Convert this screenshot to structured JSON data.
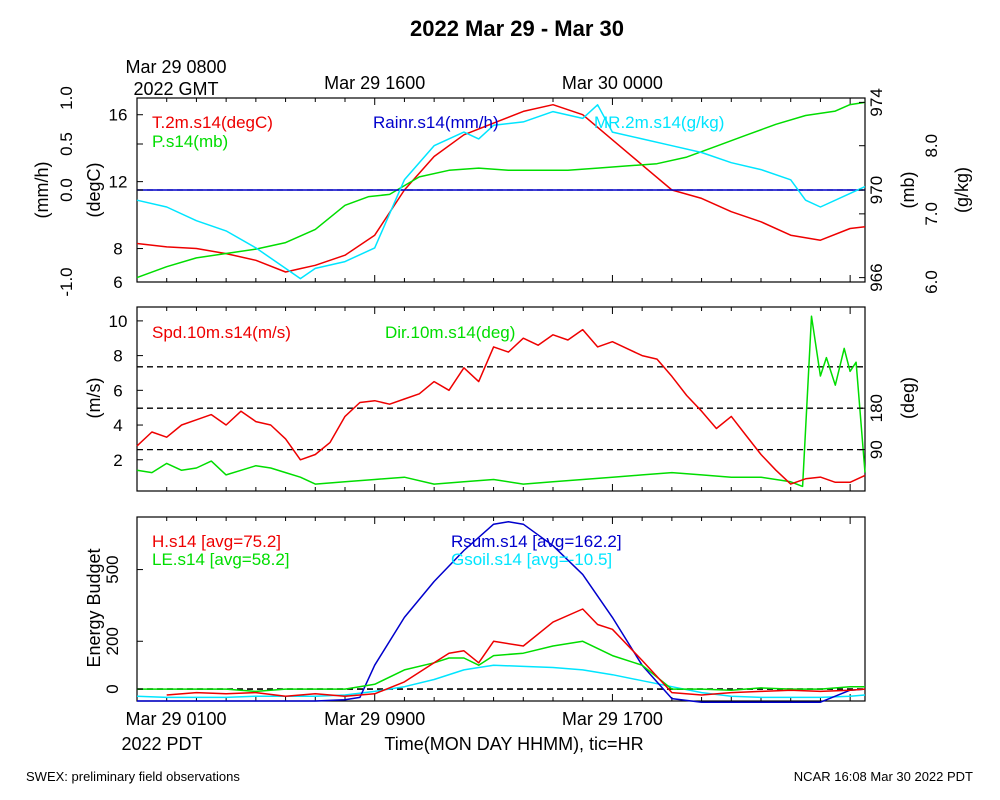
{
  "title": "2022 Mar 29 - Mar 30",
  "footer": {
    "left": "SWEX: preliminary field observations",
    "right": "NCAR 16:08 Mar 30 2022 PDT"
  },
  "top_axis": {
    "timezone_label": "2022 GMT",
    "ticks": [
      {
        "label": "Mar 29 0800",
        "hour": 0
      },
      {
        "label": "Mar 29 1600",
        "hour": 8
      },
      {
        "label": "Mar 30 0000",
        "hour": 16
      }
    ]
  },
  "bottom_axis": {
    "timezone_label": "2022 PDT",
    "xlabel": "Time(MON DAY HHMM), tic=HR",
    "ticks": [
      {
        "label": "Mar 29 0100",
        "hour": 0
      },
      {
        "label": "Mar 29 0900",
        "hour": 8
      },
      {
        "label": "Mar 29 1700",
        "hour": 16
      }
    ],
    "x_range_hours": [
      0,
      24.5
    ]
  },
  "chart_data": [
    {
      "type": "line",
      "panel": "temperature-humidity-pressure-rain",
      "grid": false,
      "axes": {
        "rain": {
          "label": "(mm/h)",
          "range": [
            -1.0,
            1.0
          ],
          "ticks": [
            "-1.0",
            "0.0",
            "0.5",
            "1.0"
          ],
          "tick_values": [
            -1.0,
            0.0,
            0.5,
            1.0
          ]
        },
        "temp": {
          "label": "(degC)",
          "range": [
            6,
            17
          ],
          "ticks": [
            "6",
            "8",
            "12",
            "16"
          ],
          "tick_values": [
            6,
            8,
            12,
            16
          ]
        },
        "pres": {
          "label": "(mb)",
          "range": [
            965.8,
            974.2
          ],
          "ticks": [
            "966",
            "970",
            "974"
          ],
          "tick_values": [
            966,
            970,
            974
          ]
        },
        "mr": {
          "label": "(g/kg)",
          "range": [
            6.0,
            8.7
          ],
          "ticks": [
            "6.0",
            "7.0",
            "8.0"
          ],
          "tick_values": [
            6.0,
            7.0,
            8.0
          ]
        }
      },
      "series": [
        {
          "name": "T.2m.s14(degC)",
          "color": "#ee0000",
          "axis": "temp",
          "x": [
            0,
            1,
            2,
            3,
            4,
            5,
            5.5,
            6,
            7,
            8,
            9,
            10,
            11,
            12,
            13,
            14,
            15,
            16,
            17,
            18,
            19,
            20,
            21,
            22,
            23,
            24,
            24.5
          ],
          "y": [
            8.3,
            8.1,
            8.0,
            7.7,
            7.3,
            6.6,
            6.8,
            7.0,
            7.6,
            8.8,
            11.5,
            13.5,
            14.8,
            15.5,
            16.2,
            16.6,
            16.0,
            14.5,
            13.0,
            11.5,
            11.0,
            10.2,
            9.6,
            8.8,
            8.5,
            9.2,
            9.3
          ]
        },
        {
          "name": "P.s14(mb)",
          "color": "#00dd00",
          "axis": "pres",
          "x": [
            0,
            1,
            2,
            3,
            4,
            5,
            6,
            7,
            7.8,
            8.5,
            9.5,
            10.5,
            11.5,
            12.5,
            13.5,
            14.5,
            15.5,
            16.5,
            17.5,
            18.5,
            19.5,
            20.5,
            21.5,
            22.5,
            23.5,
            24,
            24.5
          ],
          "y": [
            966.0,
            966.5,
            966.9,
            967.1,
            967.3,
            967.6,
            968.2,
            969.3,
            969.7,
            969.8,
            970.6,
            970.9,
            971.0,
            970.9,
            970.9,
            970.9,
            971.0,
            971.1,
            971.2,
            971.5,
            972.0,
            972.5,
            973.0,
            973.4,
            973.6,
            973.9,
            974.0
          ]
        },
        {
          "name": "Rainr.s14(mm/h)",
          "color": "#0000cc",
          "axis": "rain",
          "x": [
            0,
            24.5
          ],
          "y": [
            0.0,
            0.0
          ]
        },
        {
          "name": "MR.2m.s14(g/kg)",
          "color": "#00e5ff",
          "axis": "mr",
          "x": [
            0,
            1,
            2,
            3,
            4,
            5,
            5.5,
            6,
            7,
            8,
            9,
            10,
            11,
            11.5,
            12,
            13,
            14,
            15,
            15.5,
            16,
            17,
            18,
            19,
            20,
            21,
            22,
            22.5,
            23,
            24,
            24.5
          ],
          "y": [
            7.2,
            7.1,
            6.9,
            6.75,
            6.5,
            6.2,
            6.05,
            6.2,
            6.3,
            6.5,
            7.5,
            8.0,
            8.2,
            8.1,
            8.3,
            8.35,
            8.5,
            8.4,
            8.6,
            8.2,
            8.1,
            8.0,
            7.9,
            7.75,
            7.65,
            7.5,
            7.2,
            7.1,
            7.3,
            7.4
          ]
        }
      ],
      "legend": [
        "T.2m.s14(degC)",
        "P.s14(mb)",
        "Rainr.s14(mm/h)",
        "MR.2m.s14(g/kg)"
      ]
    },
    {
      "type": "line",
      "panel": "wind",
      "grid": false,
      "axes": {
        "spd": {
          "label": "(m/s)",
          "range": [
            0.2,
            10.8
          ],
          "ticks": [
            "2",
            "4",
            "6",
            "8",
            "10"
          ],
          "tick_values": [
            2,
            4,
            6,
            8,
            10
          ]
        },
        "dir": {
          "label": "(deg)",
          "range": [
            0,
            400
          ],
          "ticks": [
            "90",
            "180"
          ],
          "tick_values": [
            90,
            180
          ]
        }
      },
      "reference_lines_deg": [
        90,
        180,
        270
      ],
      "series": [
        {
          "name": "Spd.10m.s14(m/s)",
          "color": "#ee0000",
          "axis": "spd",
          "x": [
            0,
            0.5,
            1,
            1.5,
            2,
            2.5,
            3,
            3.5,
            4,
            4.5,
            5,
            5.5,
            6,
            6.5,
            7,
            7.5,
            8,
            8.5,
            9,
            9.5,
            10,
            10.5,
            11,
            11.5,
            12,
            12.5,
            13,
            13.5,
            14,
            14.5,
            15,
            15.5,
            16,
            16.5,
            17,
            17.5,
            18,
            18.5,
            19,
            19.5,
            20,
            20.5,
            21,
            21.5,
            22,
            22.5,
            23,
            23.5,
            24,
            24.5
          ],
          "y": [
            2.8,
            3.6,
            3.3,
            4.0,
            4.3,
            4.6,
            4.0,
            4.8,
            4.2,
            4.0,
            3.2,
            2.0,
            2.3,
            3.0,
            4.5,
            5.3,
            5.4,
            5.2,
            5.5,
            5.8,
            6.5,
            6.0,
            7.3,
            6.5,
            8.5,
            8.2,
            9.0,
            8.6,
            9.2,
            8.9,
            9.5,
            8.5,
            8.8,
            8.4,
            8.0,
            7.8,
            6.8,
            5.7,
            4.8,
            3.8,
            4.5,
            3.4,
            2.3,
            1.4,
            0.6,
            0.9,
            1.0,
            0.7,
            0.7,
            1.1
          ]
        },
        {
          "name": "Dir.10m.s14(deg)",
          "color": "#00dd00",
          "axis": "dir",
          "x": [
            0,
            0.5,
            1,
            1.5,
            2,
            2.5,
            3,
            3.5,
            4,
            4.5,
            5,
            5.5,
            6,
            7,
            8,
            9,
            10,
            11,
            12,
            13,
            14,
            15,
            16,
            17,
            18,
            19,
            20,
            21,
            22,
            22.4,
            22.7,
            23,
            23.2,
            23.5,
            23.8,
            24,
            24.2,
            24.5
          ],
          "y": [
            45,
            40,
            60,
            45,
            50,
            65,
            35,
            45,
            55,
            50,
            40,
            30,
            15,
            20,
            25,
            30,
            15,
            20,
            25,
            15,
            20,
            25,
            30,
            35,
            40,
            35,
            30,
            30,
            20,
            10,
            380,
            250,
            290,
            230,
            310,
            260,
            280,
            40
          ]
        }
      ],
      "legend": [
        "Spd.10m.s14(m/s)",
        "Dir.10m.s14(deg)"
      ]
    },
    {
      "type": "line",
      "panel": "energy-budget",
      "grid": false,
      "axes": {
        "flux": {
          "label": "Energy Budget",
          "range": [
            -50,
            720
          ],
          "ticks": [
            "0",
            "200",
            "500"
          ],
          "tick_values": [
            0,
            200,
            500
          ]
        }
      },
      "zero_line": 0,
      "series": [
        {
          "name": "H.s14 [avg=75.2]",
          "color": "#ee0000",
          "x": [
            1,
            2,
            3,
            4,
            5,
            6,
            7,
            8,
            9,
            10,
            10.5,
            11,
            11.5,
            12,
            13,
            14,
            15,
            15.5,
            16,
            17,
            18,
            19,
            20,
            21,
            22,
            23,
            24,
            24.5
          ],
          "y": [
            -25,
            -15,
            -20,
            -15,
            -30,
            -20,
            -30,
            -20,
            30,
            110,
            150,
            160,
            110,
            200,
            180,
            280,
            335,
            270,
            250,
            120,
            -15,
            -25,
            -15,
            -10,
            -5,
            -10,
            -5,
            0
          ]
        },
        {
          "name": "LE.s14 [avg=58.2]",
          "color": "#00dd00",
          "x": [
            0,
            1,
            2,
            3,
            4,
            5,
            6,
            7,
            8,
            9,
            10,
            10.5,
            11,
            11.5,
            12,
            13,
            14,
            15,
            16,
            17,
            18,
            19,
            20,
            21,
            22,
            23,
            24,
            24.5
          ],
          "y": [
            0,
            0,
            0,
            0,
            -10,
            0,
            0,
            0,
            20,
            80,
            110,
            130,
            130,
            100,
            140,
            150,
            180,
            200,
            140,
            100,
            0,
            0,
            -5,
            5,
            0,
            0,
            10,
            10
          ]
        },
        {
          "name": "Rsum.s14 [avg=162.2]",
          "color": "#0000cc",
          "x": [
            0,
            1,
            2,
            3,
            4,
            5,
            6,
            7,
            7.5,
            8,
            9,
            10,
            11,
            12,
            12.5,
            13,
            14,
            15,
            16,
            17,
            18,
            19,
            20,
            21,
            22,
            23,
            24,
            24.5
          ],
          "y": [
            -50,
            -50,
            -50,
            -50,
            -50,
            -50,
            -50,
            -45,
            -35,
            100,
            300,
            450,
            580,
            690,
            700,
            690,
            600,
            480,
            300,
            100,
            -40,
            -55,
            -55,
            -55,
            -55,
            -55,
            -5,
            0
          ]
        },
        {
          "name": "Gsoil.s14 [avg=-10.5]",
          "color": "#00e5ff",
          "x": [
            0,
            1,
            2,
            3,
            4,
            5,
            6,
            7,
            8,
            9,
            10,
            11,
            11.5,
            12,
            13,
            14,
            15,
            16,
            17,
            18,
            19,
            20,
            21,
            22,
            23,
            24,
            24.5
          ],
          "y": [
            -30,
            -35,
            -35,
            -35,
            -30,
            -30,
            -30,
            -25,
            -10,
            10,
            40,
            80,
            90,
            100,
            95,
            90,
            80,
            60,
            35,
            10,
            -15,
            -30,
            -35,
            -35,
            -35,
            -30,
            -25
          ]
        }
      ],
      "legend": [
        "H.s14 [avg=75.2]",
        "LE.s14 [avg=58.2]",
        "Rsum.s14 [avg=162.2]",
        "Gsoil.s14 [avg=-10.5]"
      ]
    }
  ]
}
